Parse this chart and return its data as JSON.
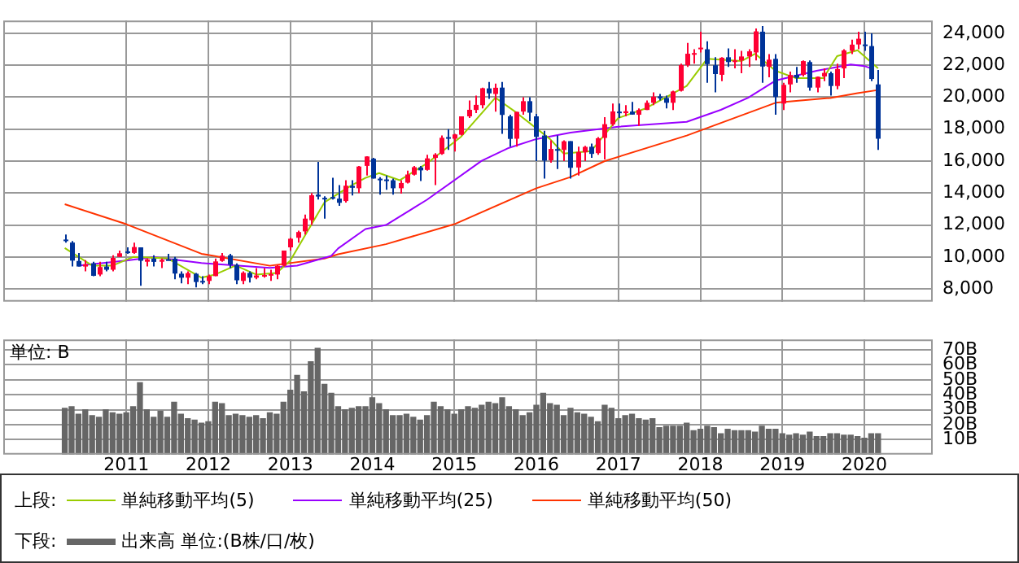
{
  "chart_data": [
    {
      "type": "candlestick",
      "tick_labels": "y",
      "grid": true,
      "legend": "bottom",
      "legend_title": "上段:",
      "xlim": [
        "2009-07",
        "2020-11"
      ],
      "xticks": [
        "2011",
        "2012",
        "2013",
        "2014",
        "2015",
        "2016",
        "2017",
        "2018",
        "2019",
        "2020"
      ],
      "ylim": [
        7200,
        24800
      ],
      "yticks": [
        {
          "value": 8000,
          "label": "8,000"
        },
        {
          "value": 10000,
          "label": "10,000"
        },
        {
          "value": 12000,
          "label": "12,000"
        },
        {
          "value": 14000,
          "label": "14,000"
        },
        {
          "value": 16000,
          "label": "16,000"
        },
        {
          "value": 18000,
          "label": "18,000"
        },
        {
          "value": 20000,
          "label": "20,000"
        },
        {
          "value": 22000,
          "label": "22,000"
        },
        {
          "value": 24000,
          "label": "24,000"
        }
      ],
      "x": [
        "2010-04",
        "2010-05",
        "2010-06",
        "2010-07",
        "2010-08",
        "2010-09",
        "2010-10",
        "2010-11",
        "2010-12",
        "2011-01",
        "2011-02",
        "2011-03",
        "2011-04",
        "2011-05",
        "2011-06",
        "2011-07",
        "2011-08",
        "2011-09",
        "2011-10",
        "2011-11",
        "2011-12",
        "2012-01",
        "2012-02",
        "2012-03",
        "2012-04",
        "2012-05",
        "2012-06",
        "2012-07",
        "2012-08",
        "2012-09",
        "2012-10",
        "2012-11",
        "2012-12",
        "2013-01",
        "2013-02",
        "2013-03",
        "2013-04",
        "2013-05",
        "2013-06",
        "2013-07",
        "2013-08",
        "2013-09",
        "2013-10",
        "2013-11",
        "2013-12",
        "2014-01",
        "2014-02",
        "2014-03",
        "2014-04",
        "2014-05",
        "2014-06",
        "2014-07",
        "2014-08",
        "2014-09",
        "2014-10",
        "2014-11",
        "2014-12",
        "2015-01",
        "2015-02",
        "2015-03",
        "2015-04",
        "2015-05",
        "2015-06",
        "2015-07",
        "2015-08",
        "2015-09",
        "2015-10",
        "2015-11",
        "2015-12",
        "2016-01",
        "2016-02",
        "2016-03",
        "2016-04",
        "2016-05",
        "2016-06",
        "2016-07",
        "2016-08",
        "2016-09",
        "2016-10",
        "2016-11",
        "2016-12",
        "2017-01",
        "2017-02",
        "2017-03",
        "2017-04",
        "2017-05",
        "2017-06",
        "2017-07",
        "2017-08",
        "2017-09",
        "2017-10",
        "2017-11",
        "2017-12",
        "2018-01",
        "2018-02",
        "2018-03",
        "2018-04",
        "2018-05",
        "2018-06",
        "2018-07",
        "2018-08",
        "2018-09",
        "2018-10",
        "2018-11",
        "2018-12",
        "2019-01",
        "2019-02",
        "2019-03",
        "2019-04",
        "2019-05",
        "2019-06",
        "2019-07",
        "2019-08",
        "2019-09",
        "2019-10",
        "2019-11",
        "2019-12",
        "2020-01",
        "2020-02",
        "2020-03"
      ],
      "ohlc": [
        [
          11090,
          11400,
          10900,
          11060
        ],
        [
          10900,
          11000,
          9400,
          9770
        ],
        [
          9750,
          10250,
          9400,
          9400
        ],
        [
          9400,
          9800,
          9100,
          9540
        ],
        [
          9600,
          9700,
          8800,
          8820
        ],
        [
          8900,
          9700,
          8800,
          9370
        ],
        [
          9400,
          9700,
          9100,
          9200
        ],
        [
          9200,
          10100,
          9100,
          9940
        ],
        [
          10000,
          10400,
          10000,
          10230
        ],
        [
          10350,
          10600,
          10200,
          10240
        ],
        [
          10250,
          10900,
          10200,
          10620
        ],
        [
          10600,
          10600,
          8200,
          9760
        ],
        [
          9700,
          9900,
          9400,
          9850
        ],
        [
          9900,
          10100,
          9400,
          9690
        ],
        [
          9700,
          9900,
          9300,
          9820
        ],
        [
          9850,
          10200,
          9800,
          9830
        ],
        [
          9900,
          10000,
          8600,
          8960
        ],
        [
          8950,
          9100,
          8350,
          8700
        ],
        [
          8700,
          9100,
          8300,
          8990
        ],
        [
          8950,
          9000,
          8100,
          8430
        ],
        [
          8500,
          8800,
          8300,
          8460
        ],
        [
          8500,
          8900,
          8300,
          8800
        ],
        [
          8800,
          9900,
          8800,
          9720
        ],
        [
          9750,
          10250,
          9700,
          10080
        ],
        [
          10100,
          10200,
          9300,
          9520
        ],
        [
          9500,
          9600,
          8300,
          8540
        ],
        [
          8500,
          9100,
          8300,
          9010
        ],
        [
          9000,
          9100,
          8400,
          8700
        ],
        [
          8700,
          9300,
          8600,
          8840
        ],
        [
          8850,
          9300,
          8700,
          8870
        ],
        [
          8850,
          9200,
          8500,
          8930
        ],
        [
          8900,
          9500,
          8600,
          9450
        ],
        [
          9450,
          10400,
          9400,
          10400
        ],
        [
          10600,
          11200,
          10400,
          11140
        ],
        [
          11200,
          11650,
          10900,
          11560
        ],
        [
          11600,
          12650,
          11400,
          12400
        ],
        [
          12300,
          14000,
          12000,
          13860
        ],
        [
          13900,
          15950,
          13600,
          13780
        ],
        [
          13700,
          13800,
          12400,
          13680
        ],
        [
          13750,
          14950,
          13600,
          13670
        ],
        [
          13650,
          14500,
          13200,
          13390
        ],
        [
          13500,
          14800,
          13400,
          14460
        ],
        [
          14450,
          14800,
          13850,
          14330
        ],
        [
          14300,
          15700,
          14000,
          15660
        ],
        [
          15700,
          16300,
          15100,
          16290
        ],
        [
          16150,
          16200,
          14900,
          14910
        ],
        [
          14900,
          15000,
          13900,
          14840
        ],
        [
          14850,
          15100,
          14200,
          14830
        ],
        [
          14800,
          14900,
          13900,
          14300
        ],
        [
          14300,
          14800,
          13960,
          14630
        ],
        [
          14650,
          15400,
          14600,
          15160
        ],
        [
          15150,
          15700,
          15100,
          15620
        ],
        [
          15600,
          15700,
          14750,
          15420
        ],
        [
          15450,
          16400,
          15400,
          16170
        ],
        [
          16200,
          16500,
          14500,
          16410
        ],
        [
          16450,
          17600,
          16400,
          17460
        ],
        [
          17500,
          18000,
          16700,
          17450
        ],
        [
          17400,
          17700,
          16600,
          17670
        ],
        [
          17650,
          18800,
          17600,
          18800
        ],
        [
          18800,
          19800,
          18700,
          19210
        ],
        [
          19200,
          20100,
          19000,
          19520
        ],
        [
          19500,
          20600,
          19300,
          20560
        ],
        [
          20550,
          20950,
          19900,
          20240
        ],
        [
          20200,
          20850,
          19100,
          20590
        ],
        [
          20600,
          20950,
          17700,
          18890
        ],
        [
          18800,
          18900,
          16900,
          17390
        ],
        [
          17400,
          19100,
          16900,
          19080
        ],
        [
          19100,
          20000,
          18900,
          19750
        ],
        [
          19750,
          20000,
          18500,
          19030
        ],
        [
          18800,
          18950,
          16000,
          17520
        ],
        [
          17600,
          17900,
          14900,
          16030
        ],
        [
          16050,
          17300,
          15900,
          16760
        ],
        [
          16750,
          17600,
          15500,
          16670
        ],
        [
          16700,
          17300,
          16000,
          17240
        ],
        [
          17250,
          17250,
          14900,
          15580
        ],
        [
          15600,
          16900,
          15100,
          16570
        ],
        [
          16550,
          16950,
          16000,
          16890
        ],
        [
          16900,
          17100,
          16200,
          16450
        ],
        [
          16500,
          17500,
          16400,
          17430
        ],
        [
          17450,
          18750,
          16100,
          18310
        ],
        [
          18300,
          19600,
          18200,
          19110
        ],
        [
          19100,
          19600,
          18700,
          19040
        ],
        [
          19000,
          19500,
          18800,
          19120
        ],
        [
          19100,
          19700,
          18900,
          18910
        ],
        [
          18900,
          19300,
          18200,
          19200
        ],
        [
          19200,
          19800,
          19200,
          19650
        ],
        [
          19650,
          20300,
          19500,
          20030
        ],
        [
          20050,
          20200,
          19800,
          19930
        ],
        [
          19950,
          20100,
          19300,
          19650
        ],
        [
          19650,
          20400,
          19200,
          20360
        ],
        [
          20400,
          22100,
          20350,
          22010
        ],
        [
          22000,
          23400,
          21900,
          22720
        ],
        [
          22700,
          23000,
          22100,
          22760
        ],
        [
          23000,
          24100,
          22800,
          23100
        ],
        [
          23000,
          23500,
          20900,
          22070
        ],
        [
          22000,
          22500,
          20300,
          21450
        ],
        [
          21400,
          22500,
          21000,
          22470
        ],
        [
          22500,
          23050,
          21900,
          22200
        ],
        [
          22200,
          23000,
          21800,
          22300
        ],
        [
          22300,
          22900,
          21500,
          22550
        ],
        [
          22550,
          23000,
          21900,
          22870
        ],
        [
          22800,
          24300,
          22300,
          24120
        ],
        [
          24100,
          24450,
          20900,
          21920
        ],
        [
          21900,
          22700,
          21250,
          22350
        ],
        [
          22400,
          22700,
          18900,
          20010
        ],
        [
          19600,
          20900,
          19200,
          20770
        ],
        [
          20800,
          21600,
          20300,
          21390
        ],
        [
          21400,
          21900,
          20900,
          21210
        ],
        [
          21400,
          22300,
          21300,
          22260
        ],
        [
          22200,
          22300,
          20400,
          20600
        ],
        [
          20600,
          21300,
          20300,
          21280
        ],
        [
          21300,
          21800,
          21000,
          21520
        ],
        [
          21500,
          21600,
          20100,
          20700
        ],
        [
          20700,
          22100,
          20500,
          21760
        ],
        [
          21800,
          23000,
          21200,
          22930
        ],
        [
          22900,
          23600,
          22700,
          23290
        ],
        [
          23300,
          24100,
          23000,
          23660
        ],
        [
          23300,
          24100,
          22900,
          23210
        ],
        [
          23200,
          24000,
          21000,
          21140
        ],
        [
          20800,
          21700,
          16700,
          17400
        ]
      ],
      "colors": [
        "#003399",
        "#003399",
        "#003399",
        "#ff0033",
        "#003399",
        "#ff0033",
        "#003399",
        "#ff0033",
        "#ff0033",
        "#003399",
        "#ff0033",
        "#003399",
        "#ff0033",
        "#003399",
        "#ff0033",
        "#003399",
        "#003399",
        "#003399",
        "#ff0033",
        "#003399",
        "#003399",
        "#ff0033",
        "#ff0033",
        "#ff0033",
        "#003399",
        "#003399",
        "#ff0033",
        "#003399",
        "#ff0033",
        "#ff0033",
        "#ff0033",
        "#ff0033",
        "#ff0033",
        "#ff0033",
        "#ff0033",
        "#ff0033",
        "#ff0033",
        "#003399",
        "#003399",
        "#003399",
        "#003399",
        "#ff0033",
        "#003399",
        "#ff0033",
        "#ff0033",
        "#003399",
        "#003399",
        "#003399",
        "#003399",
        "#ff0033",
        "#ff0033",
        "#ff0033",
        "#003399",
        "#ff0033",
        "#ff0033",
        "#ff0033",
        "#003399",
        "#ff0033",
        "#ff0033",
        "#ff0033",
        "#ff0033",
        "#ff0033",
        "#003399",
        "#ff0033",
        "#003399",
        "#003399",
        "#ff0033",
        "#ff0033",
        "#003399",
        "#003399",
        "#003399",
        "#ff0033",
        "#003399",
        "#ff0033",
        "#003399",
        "#ff0033",
        "#ff0033",
        "#003399",
        "#ff0033",
        "#ff0033",
        "#ff0033",
        "#003399",
        "#ff0033",
        "#003399",
        "#ff0033",
        "#ff0033",
        "#ff0033",
        "#003399",
        "#003399",
        "#ff0033",
        "#ff0033",
        "#ff0033",
        "#ff0033",
        "#ff0033",
        "#003399",
        "#003399",
        "#ff0033",
        "#003399",
        "#ff0033",
        "#ff0033",
        "#ff0033",
        "#ff0033",
        "#003399",
        "#ff0033",
        "#003399",
        "#ff0033",
        "#ff0033",
        "#003399",
        "#ff0033",
        "#003399",
        "#ff0033",
        "#ff0033",
        "#003399",
        "#ff0033",
        "#ff0033",
        "#ff0033",
        "#ff0033",
        "#003399",
        "#003399",
        "#003399"
      ],
      "series": [
        {
          "type": "line",
          "name": "単純移動平均(5)",
          "color": "#99cc00",
          "x": [
            "2010-04",
            "2010-08",
            "2010-11",
            "2011-02",
            "2011-07",
            "2011-12",
            "2012-02",
            "2012-05",
            "2012-08",
            "2012-11",
            "2013-01",
            "2013-06",
            "2013-10",
            "2013-12",
            "2014-02",
            "2014-05",
            "2014-09",
            "2015-02",
            "2015-07",
            "2015-10",
            "2016-03",
            "2016-05",
            "2016-09",
            "2017-01",
            "2017-05",
            "2017-11",
            "2018-02",
            "2018-07",
            "2018-09",
            "2018-12",
            "2019-03",
            "2019-07",
            "2019-09",
            "2019-12",
            "2020-03"
          ],
          "values": [
            10560,
            9460,
            9460,
            10000,
            9920,
            8700,
            8900,
            9460,
            8900,
            9000,
            9770,
            13420,
            14490,
            14950,
            15250,
            14800,
            15860,
            17530,
            19970,
            19060,
            17380,
            16470,
            16620,
            18700,
            19300,
            20700,
            22410,
            22260,
            22720,
            21650,
            21190,
            21190,
            22570,
            22940,
            21800
          ]
        },
        {
          "type": "line",
          "name": "単純移動平均(25)",
          "color": "#9900ff",
          "x": [
            "2010-06",
            "2011-01",
            "2011-05",
            "2011-12",
            "2012-10",
            "2013-02",
            "2013-07",
            "2013-08",
            "2013-12",
            "2014-03",
            "2014-09",
            "2015-05",
            "2015-09",
            "2016-01",
            "2016-06",
            "2017-01",
            "2017-11",
            "2018-04",
            "2018-08",
            "2018-12",
            "2019-06",
            "2019-11",
            "2020-01",
            "2020-02"
          ],
          "values": [
            9460,
            9770,
            9990,
            9620,
            9310,
            9460,
            10070,
            10530,
            11750,
            12000,
            13580,
            16020,
            16830,
            17380,
            17780,
            18150,
            18460,
            19210,
            19970,
            21040,
            21650,
            22050,
            21950,
            21800
          ]
        },
        {
          "type": "line",
          "name": "単純移動平均(50)",
          "color": "#ff3300",
          "x": [
            "2010-04",
            "2011-01",
            "2011-12",
            "2012-10",
            "2013-06",
            "2013-08",
            "2014-03",
            "2015-01",
            "2016-01",
            "2016-06",
            "2016-11",
            "2017-11",
            "2018-12",
            "2019-08",
            "2019-12",
            "2020-03"
          ],
          "values": [
            13300,
            12050,
            10200,
            9450,
            9900,
            10170,
            10800,
            12050,
            14300,
            15000,
            16000,
            17600,
            19650,
            19950,
            20250,
            20450
          ]
        }
      ]
    },
    {
      "type": "bar",
      "grid": true,
      "legend": "bottom",
      "legend_title": "下段:",
      "annotations": [
        "単位: B"
      ],
      "xlim": [
        "2009-07",
        "2020-11"
      ],
      "xticks": [
        "2011",
        "2012",
        "2013",
        "2014",
        "2015",
        "2016",
        "2017",
        "2018",
        "2019",
        "2020"
      ],
      "ylim": [
        0,
        77
      ],
      "yticks": [
        {
          "value": 10,
          "label": "10B"
        },
        {
          "value": 20,
          "label": "20B"
        },
        {
          "value": 30,
          "label": "30B"
        },
        {
          "value": 40,
          "label": "40B"
        },
        {
          "value": 50,
          "label": "50B"
        },
        {
          "value": 60,
          "label": "60B"
        },
        {
          "value": 70,
          "label": "70B"
        }
      ],
      "x": [
        "2010-04",
        "2010-05",
        "2010-06",
        "2010-07",
        "2010-08",
        "2010-09",
        "2010-10",
        "2010-11",
        "2010-12",
        "2011-01",
        "2011-02",
        "2011-03",
        "2011-04",
        "2011-05",
        "2011-06",
        "2011-07",
        "2011-08",
        "2011-09",
        "2011-10",
        "2011-11",
        "2011-12",
        "2012-01",
        "2012-02",
        "2012-03",
        "2012-04",
        "2012-05",
        "2012-06",
        "2012-07",
        "2012-08",
        "2012-09",
        "2012-10",
        "2012-11",
        "2012-12",
        "2013-01",
        "2013-02",
        "2013-03",
        "2013-04",
        "2013-05",
        "2013-06",
        "2013-07",
        "2013-08",
        "2013-09",
        "2013-10",
        "2013-11",
        "2013-12",
        "2014-01",
        "2014-02",
        "2014-03",
        "2014-04",
        "2014-05",
        "2014-06",
        "2014-07",
        "2014-08",
        "2014-09",
        "2014-10",
        "2014-11",
        "2014-12",
        "2015-01",
        "2015-02",
        "2015-03",
        "2015-04",
        "2015-05",
        "2015-06",
        "2015-07",
        "2015-08",
        "2015-09",
        "2015-10",
        "2015-11",
        "2015-12",
        "2016-01",
        "2016-02",
        "2016-03",
        "2016-04",
        "2016-05",
        "2016-06",
        "2016-07",
        "2016-08",
        "2016-09",
        "2016-10",
        "2016-11",
        "2016-12",
        "2017-01",
        "2017-02",
        "2017-03",
        "2017-04",
        "2017-05",
        "2017-06",
        "2017-07",
        "2017-08",
        "2017-09",
        "2017-10",
        "2017-11",
        "2017-12",
        "2018-01",
        "2018-02",
        "2018-03",
        "2018-04",
        "2018-05",
        "2018-06",
        "2018-07",
        "2018-08",
        "2018-09",
        "2018-10",
        "2018-11",
        "2018-12",
        "2019-01",
        "2019-02",
        "2019-03",
        "2019-04",
        "2019-05",
        "2019-06",
        "2019-07",
        "2019-08",
        "2019-09",
        "2019-10",
        "2019-11",
        "2019-12",
        "2020-01",
        "2020-02",
        "2020-03"
      ],
      "series": [
        {
          "name": "出来高 単位:(B株/口/枚)",
          "color": "#666666",
          "values": [
            31,
            32,
            27,
            30,
            26,
            25,
            30,
            28,
            27,
            28,
            32,
            48,
            30,
            25,
            29,
            25,
            35,
            27,
            24,
            23,
            21,
            22,
            35,
            34,
            26,
            27,
            26,
            25,
            26,
            24,
            28,
            27,
            35,
            43,
            53,
            42,
            62,
            71,
            47,
            41,
            32,
            30,
            31,
            32,
            32,
            38,
            34,
            30,
            26,
            26,
            27,
            25,
            23,
            26,
            35,
            32,
            30,
            27,
            30,
            32,
            31,
            33,
            35,
            34,
            38,
            32,
            30,
            26,
            28,
            33,
            41,
            34,
            33,
            26,
            31,
            28,
            27,
            25,
            22,
            33,
            31,
            24,
            26,
            27,
            24,
            23,
            24,
            18,
            19,
            19,
            19,
            21,
            16,
            17,
            19,
            18,
            14,
            17,
            16,
            16,
            16,
            15,
            19,
            17,
            17,
            14,
            13,
            14,
            13,
            15,
            12,
            12,
            14,
            14,
            13,
            13,
            12,
            11,
            14,
            14
          ]
        }
      ]
    }
  ]
}
